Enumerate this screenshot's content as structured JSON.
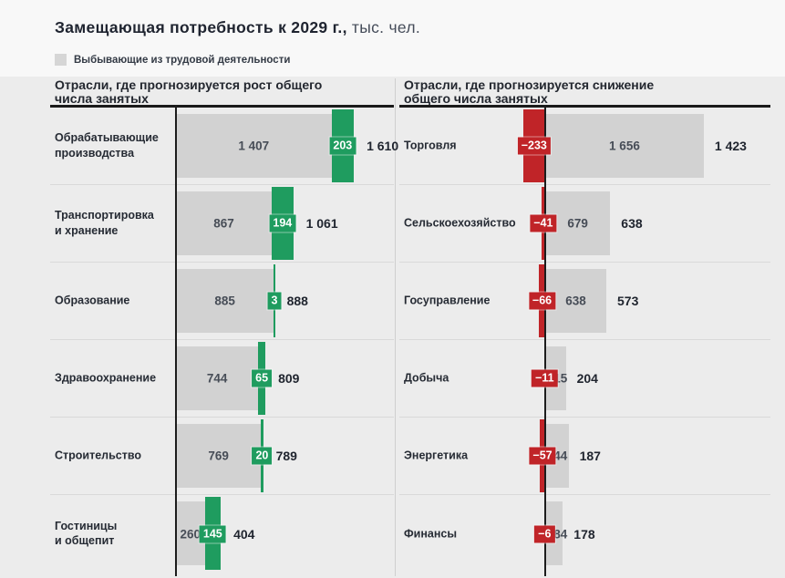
{
  "title": {
    "main": "Замещающая потребность к 2029 г.,",
    "unit": " тыс. чел."
  },
  "legend": {
    "items": [
      {
        "label": "Выбывающие из трудовой деятельности",
        "color": "#d6d6d6"
      }
    ]
  },
  "colors": {
    "positive": "#1f9c5f",
    "negative": "#c02428",
    "bar_gray": "#d2d2d2",
    "background": "#ececec",
    "axis": "#1c1c1c"
  },
  "chart_data": {
    "type": "bar",
    "orientation": "horizontal",
    "title": "Замещающая потребность к 2029 г., тыс. чел.",
    "units": "тыс. чел.",
    "legend": [
      "Выбывающие из трудовой деятельности"
    ],
    "legend_position": "top-left",
    "grid": false,
    "panels": [
      {
        "heading": "Отрасли, где прогнозируется рост общего\nчисла занятых",
        "direction": "growth",
        "rows": [
          {
            "label": "Обрабатывающие\nпроизводства",
            "leaving": 1407,
            "leaving_label": "1 407",
            "change": 203,
            "change_label": "203",
            "total": 1610,
            "total_label": "1 610"
          },
          {
            "label": "Транспортировка\nи хранение",
            "leaving": 867,
            "leaving_label": "867",
            "change": 194,
            "change_label": "194",
            "total": 1061,
            "total_label": "1 061"
          },
          {
            "label": "Образование",
            "leaving": 885,
            "leaving_label": "885",
            "change": 3,
            "change_label": "3",
            "total": 888,
            "total_label": "888"
          },
          {
            "label": "Здравоохранение",
            "leaving": 744,
            "leaving_label": "744",
            "change": 65,
            "change_label": "65",
            "total": 809,
            "total_label": "809"
          },
          {
            "label": "Строительство",
            "leaving": 769,
            "leaving_label": "769",
            "change": 20,
            "change_label": "20",
            "total": 789,
            "total_label": "789"
          },
          {
            "label": "Гостиницы\nи общепит",
            "leaving": 260,
            "leaving_label": "260",
            "change": 145,
            "change_label": "145",
            "total": 404,
            "total_label": "404"
          }
        ]
      },
      {
        "heading": "Отрасли, где прогнозируется снижение\nобщего числа занятых",
        "direction": "decline",
        "rows": [
          {
            "label": "Торговля",
            "leaving": 1656,
            "leaving_label": "1 656",
            "change": -233,
            "change_label": "−233",
            "total": 1423,
            "total_label": "1 423"
          },
          {
            "label": "Сельскоехозяйство",
            "leaving": 679,
            "leaving_label": "679",
            "change": -41,
            "change_label": "−41",
            "total": 638,
            "total_label": "638"
          },
          {
            "label": "Госуправление",
            "leaving": 638,
            "leaving_label": "638",
            "change": -66,
            "change_label": "−66",
            "total": 573,
            "total_label": "573"
          },
          {
            "label": "Добыча",
            "leaving": 215,
            "leaving_label": "215",
            "change": -11,
            "change_label": "−11",
            "total": 204,
            "total_label": "204"
          },
          {
            "label": "Энергетика",
            "leaving": 244,
            "leaving_label": "244",
            "change": -57,
            "change_label": "−57",
            "total": 187,
            "total_label": "187"
          },
          {
            "label": "Финансы",
            "leaving": 184,
            "leaving_label": "184",
            "change": -6,
            "change_label": "−6",
            "total": 178,
            "total_label": "178"
          }
        ]
      }
    ]
  }
}
